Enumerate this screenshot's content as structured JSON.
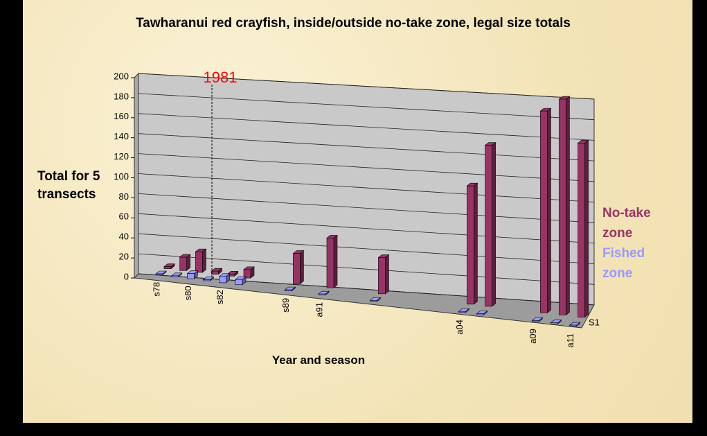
{
  "chart_data": {
    "type": "bar3d",
    "title": "Tawharanui red crayfish, inside/outside no-take zone, legal size totals",
    "y_label": "Total for 5 transects",
    "x_label": "Year and season",
    "depth_label": "S1",
    "annotation": "1981",
    "categories": [
      "s78",
      null,
      "s80",
      null,
      "s82",
      null,
      null,
      null,
      "s89",
      null,
      "a91",
      null,
      null,
      null,
      null,
      null,
      null,
      null,
      "a04",
      null,
      null,
      null,
      "a09",
      null,
      "a11"
    ],
    "series": [
      {
        "name": "No-take zone",
        "color": "#993366",
        "values": [
          2,
          13,
          20,
          3,
          2,
          8,
          null,
          null,
          28,
          null,
          45,
          null,
          null,
          32,
          null,
          null,
          null,
          null,
          100,
          135,
          null,
          null,
          165,
          175,
          140
        ]
      },
      {
        "name": "Fished zone",
        "color": "#9999ff",
        "values": [
          0,
          0,
          5,
          0,
          6,
          5,
          null,
          null,
          0,
          null,
          0,
          null,
          null,
          0,
          null,
          null,
          null,
          null,
          0,
          0,
          null,
          null,
          0,
          0,
          0
        ]
      }
    ],
    "ylim": [
      0,
      200
    ],
    "yticks": [
      0,
      20,
      40,
      60,
      80,
      100,
      120,
      140,
      160,
      180,
      200
    ],
    "grid": true
  }
}
